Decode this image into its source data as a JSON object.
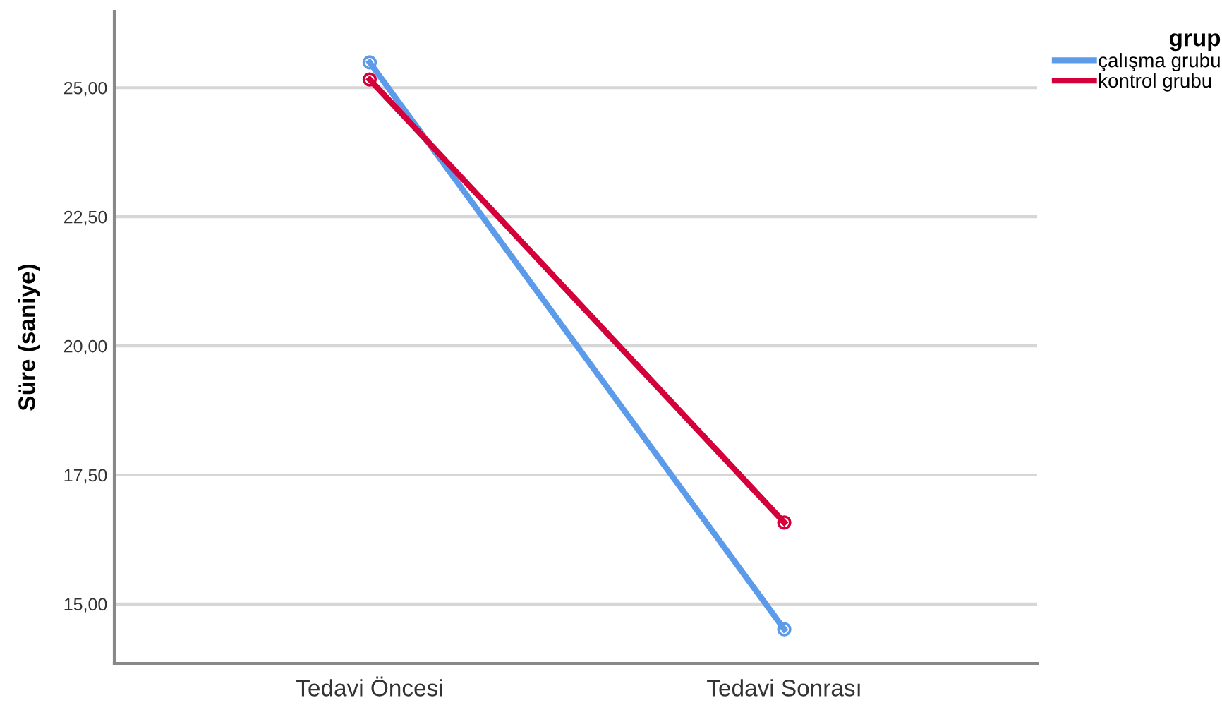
{
  "chart_data": {
    "type": "line",
    "ylabel": "Süre (saniye)",
    "legend_title": "grup",
    "categories": [
      "Tedavi Öncesi",
      "Tedavi Sonrası"
    ],
    "series": [
      {
        "name": "çalışma grubu",
        "color": "#5b9bea",
        "values": [
          25.49,
          14.51
        ]
      },
      {
        "name": "kontrol grubu",
        "color": "#d4003a",
        "values": [
          25.16,
          16.58
        ]
      }
    ],
    "ylim": [
      13.85,
      26.48
    ],
    "yticks": [
      {
        "value": 15,
        "label": "15,00"
      },
      {
        "value": 17.5,
        "label": "17,50"
      },
      {
        "value": 20,
        "label": "20,00"
      },
      {
        "value": 22.5,
        "label": "22,50"
      },
      {
        "value": 25,
        "label": "25,00"
      }
    ],
    "grid": "y",
    "legend": "top right",
    "marker": "circle",
    "line_style": "solid"
  }
}
